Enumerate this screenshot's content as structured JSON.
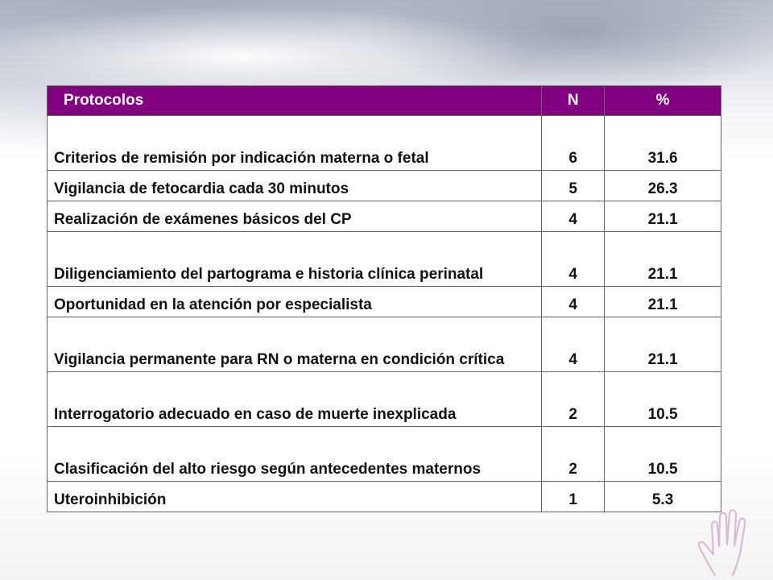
{
  "table": {
    "headers": [
      "Protocolos",
      "N",
      "%"
    ],
    "rows": [
      {
        "label": "Criterios de remisión por indicación materna o fetal",
        "n": "6",
        "pct": "31.6"
      },
      {
        "label": "Vigilancia de fetocardia cada 30 minutos",
        "n": "5",
        "pct": "26.3"
      },
      {
        "label": "Realización de exámenes básicos del CP",
        "n": "4",
        "pct": "21.1"
      },
      {
        "label": "Diligenciamiento del partograma e historia clínica perinatal",
        "n": "4",
        "pct": "21.1"
      },
      {
        "label": "Oportunidad en la atención por especialista",
        "n": "4",
        "pct": "21.1"
      },
      {
        "label": "Vigilancia permanente para RN o materna en condición crítica",
        "n": "4",
        "pct": "21.1"
      },
      {
        "label": "Interrogatorio adecuado en caso de muerte inexplicada",
        "n": "2",
        "pct": "10.5"
      },
      {
        "label": "Clasificación del alto riesgo según antecedentes maternos",
        "n": "2",
        "pct": "10.5"
      },
      {
        "label": "Uteroinhibición",
        "n": "1",
        "pct": "5.3"
      }
    ]
  },
  "colors": {
    "header_bg": "#800080",
    "header_text": "#ffffff"
  },
  "decorations": {
    "corner_icon": "hand-outline-icon"
  }
}
